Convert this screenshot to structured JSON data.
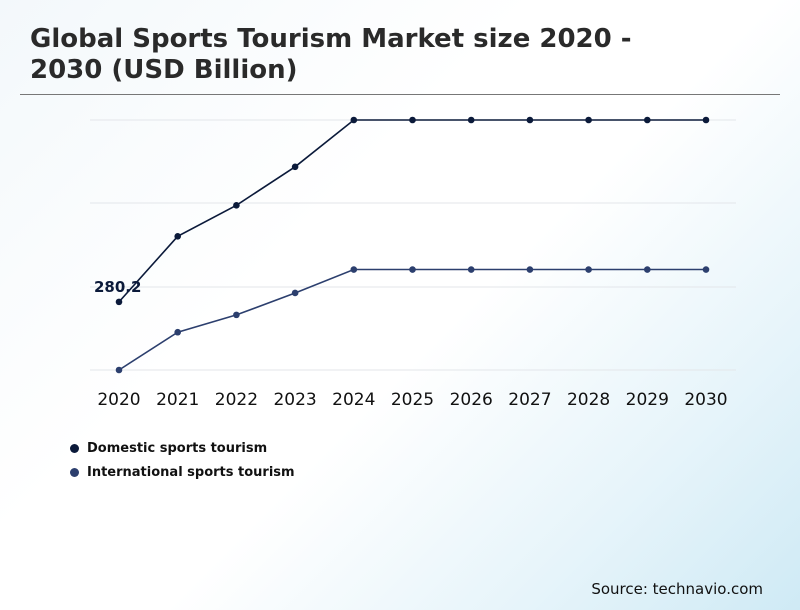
{
  "header": {
    "title": "Global Sports Tourism Market size 2020 - 2030 (USD Billion)"
  },
  "source": "Source: technavio.com",
  "colors": {
    "domestic": "#0b1a3a",
    "international": "#2c3f6e",
    "grid": "#e3e6ea"
  },
  "chart_data": {
    "type": "line",
    "title": "Global Sports Tourism Market size 2020 - 2030 (USD Billion)",
    "xlabel": "",
    "ylabel": "",
    "categories": [
      "2020",
      "2021",
      "2022",
      "2023",
      "2024",
      "2025",
      "2026",
      "2027",
      "2028",
      "2029",
      "2030"
    ],
    "series": [
      {
        "name": "Domestic sports tourism",
        "values": [
          280.2,
          367,
          408,
          459,
          521,
          521,
          521,
          521,
          521,
          521,
          521
        ]
      },
      {
        "name": "International sports tourism",
        "values": [
          190,
          240,
          263,
          292,
          323,
          323,
          323,
          323,
          323,
          323,
          323
        ]
      }
    ],
    "annotations": [
      {
        "series": 0,
        "index": 0,
        "text": "280.2"
      }
    ],
    "ylim": [
      190,
      521
    ],
    "grid": true,
    "legend": "bottom-left"
  }
}
